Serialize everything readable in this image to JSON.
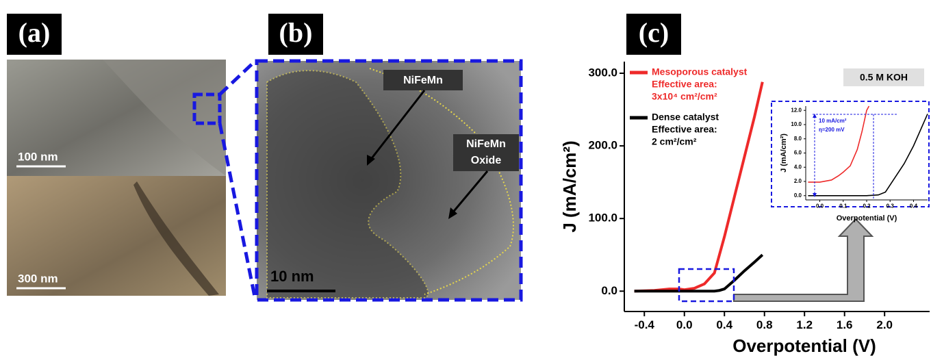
{
  "panels": {
    "a": {
      "label": "(a)",
      "scale_top": "100 nm",
      "scale_bottom": "300 nm"
    },
    "b": {
      "label": "(b)",
      "scale": "10 nm",
      "annotations": [
        [
          "NiFeMn"
        ],
        [
          "NiFeMn",
          "Oxide"
        ]
      ]
    },
    "c": {
      "label": "(c)"
    }
  },
  "chart_data": [
    {
      "type": "line",
      "x_label": "Overpotential (V)",
      "y_label": "J (mA/cm²)",
      "xlim": [
        -0.6,
        2.45
      ],
      "ylim": [
        -28,
        316
      ],
      "xticks": [
        -0.4,
        {
          "value": 0,
          "label": "0.0"
        },
        0.4,
        0.8,
        1.2,
        1.6,
        {
          "value": 2,
          "label": "2.0"
        }
      ],
      "yticks": [
        {
          "value": 0,
          "label": "0.0"
        },
        {
          "value": 100,
          "label": "100.0"
        },
        {
          "value": 200,
          "label": "200.0"
        },
        {
          "value": 300,
          "label": "300.0"
        }
      ],
      "series": [
        {
          "name": "Mesoporous catalyst",
          "color": "#ee2a2a",
          "note": [
            "Effective area:",
            "3x10⁴ cm²/cm²"
          ],
          "x": [
            -0.5,
            -0.3,
            -0.15,
            -0.05,
            0.0,
            0.1,
            0.2,
            0.3,
            0.4,
            0.5,
            0.6,
            0.7,
            0.78
          ],
          "values": [
            0,
            1,
            3,
            3,
            2,
            4,
            10,
            25,
            75,
            130,
            185,
            240,
            288
          ]
        },
        {
          "name": "Dense catalyst",
          "color": "#000000",
          "note": [
            "Effective area:",
            "2 cm²/cm²"
          ],
          "x": [
            -0.5,
            0.0,
            0.3,
            0.35,
            0.4,
            0.5,
            0.6,
            0.7,
            0.78
          ],
          "values": [
            0,
            0,
            0,
            1,
            3,
            15,
            28,
            40,
            50
          ]
        }
      ],
      "annotations": [
        "0.5 M KOH"
      ]
    },
    {
      "type": "line",
      "x_label": "Overpotential (V)",
      "y_label": "J (mA/cm²)",
      "xlim": [
        -0.06,
        0.46
      ],
      "ylim": [
        -0.6,
        12.6
      ],
      "xticks": [
        {
          "value": 0,
          "label": "0.0"
        },
        0.1,
        0.2,
        0.3,
        0.4
      ],
      "yticks": [
        {
          "value": 0,
          "label": "0.0"
        },
        {
          "value": 2,
          "label": "2.0"
        },
        {
          "value": 4,
          "label": "4.0"
        },
        {
          "value": 6,
          "label": "6.0"
        },
        {
          "value": 8,
          "label": "8.0"
        },
        {
          "value": 10,
          "label": "10.0"
        },
        {
          "value": 12,
          "label": "12.0"
        }
      ],
      "series": [
        {
          "color": "#ee2a2a",
          "x": [
            -0.05,
            0.0,
            0.05,
            0.08,
            0.1,
            0.13,
            0.16,
            0.18,
            0.2,
            0.21
          ],
          "values": [
            1.9,
            1.9,
            2.2,
            2.8,
            3.3,
            4.2,
            6.5,
            9,
            12,
            12.6
          ]
        },
        {
          "color": "#000000",
          "x": [
            -0.05,
            0.2,
            0.25,
            0.28,
            0.32,
            0.36,
            0.4,
            0.44,
            0.46
          ],
          "values": [
            0,
            0,
            0.1,
            0.5,
            2.5,
            4.5,
            7,
            10,
            11.5
          ]
        }
      ],
      "annotations": [
        "10 mA/cm²",
        "η=200 mV"
      ]
    }
  ]
}
